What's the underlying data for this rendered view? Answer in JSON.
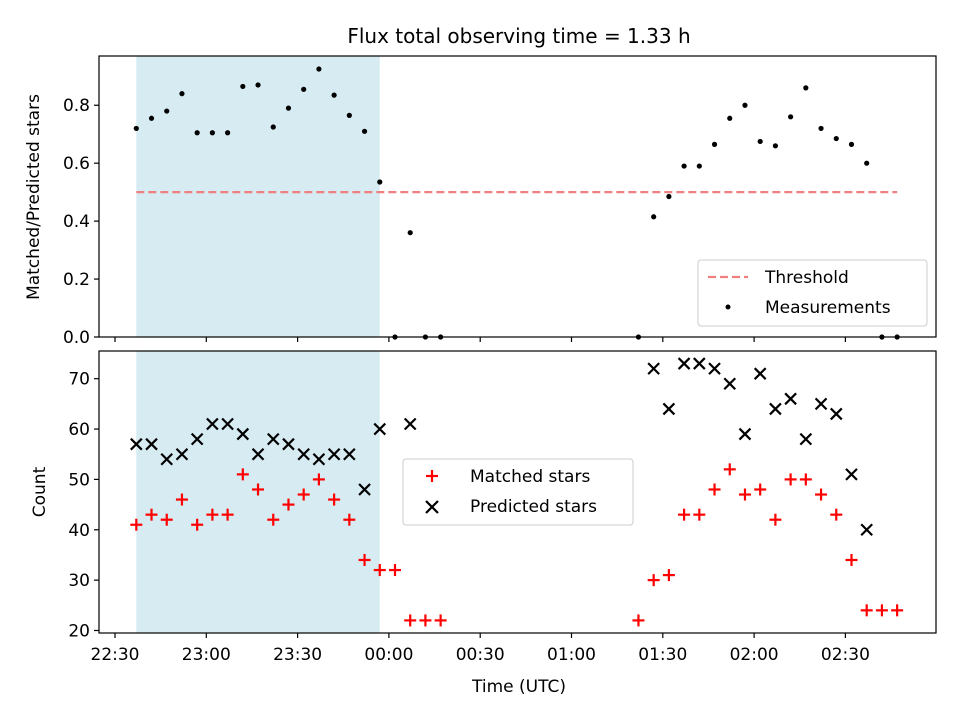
{
  "chart_data": {
    "type": "scatter",
    "title": "Flux total observing time = 1.33 h",
    "xlabel": "Time (UTC)",
    "x_tick_labels": [
      "22:30",
      "23:00",
      "23:30",
      "00:00",
      "00:30",
      "01:00",
      "01:30",
      "02:00",
      "02:30"
    ],
    "shaded_interval": [
      "22:37",
      "23:57"
    ],
    "panels": [
      {
        "ylabel": "Matched/Predicted stars",
        "ylim": [
          0,
          0.97
        ],
        "y_ticks": [
          0.0,
          0.2,
          0.4,
          0.6,
          0.8
        ],
        "y_tick_labels": [
          "0.0",
          "0.2",
          "0.4",
          "0.6",
          "0.8"
        ],
        "legend": {
          "position": "lower-right",
          "entries": [
            "Threshold",
            "Measurements"
          ]
        },
        "threshold": {
          "name": "Threshold",
          "value": 0.5,
          "x_range": [
            "22:37",
            "02:47"
          ],
          "color": "#f08080"
        },
        "series": [
          {
            "name": "Measurements",
            "color": "#000000",
            "marker": "dot",
            "x": [
              "22:37",
              "22:42",
              "22:47",
              "22:52",
              "22:57",
              "23:02",
              "23:07",
              "23:12",
              "23:17",
              "23:22",
              "23:27",
              "23:32",
              "23:37",
              "23:42",
              "23:47",
              "23:52",
              "23:57",
              "00:02",
              "00:07",
              "00:12",
              "00:17",
              "01:22",
              "01:27",
              "01:32",
              "01:37",
              "01:42",
              "01:47",
              "01:52",
              "01:57",
              "02:02",
              "02:07",
              "02:12",
              "02:17",
              "02:22",
              "02:27",
              "02:32",
              "02:37",
              "02:42",
              "02:47"
            ],
            "y": [
              0.72,
              0.755,
              0.78,
              0.84,
              0.705,
              0.705,
              0.705,
              0.865,
              0.87,
              0.725,
              0.79,
              0.855,
              0.925,
              0.835,
              0.765,
              0.71,
              0.535,
              0.0,
              0.36,
              0.0,
              0.0,
              0.0,
              0.415,
              0.485,
              0.59,
              0.59,
              0.665,
              0.755,
              0.8,
              0.675,
              0.66,
              0.76,
              0.86,
              0.72,
              0.685,
              0.665,
              0.6,
              0.0,
              0.0
            ]
          }
        ]
      },
      {
        "ylabel": "Count",
        "ylim": [
          19.5,
          75.5
        ],
        "y_ticks": [
          20,
          30,
          40,
          50,
          60,
          70
        ],
        "y_tick_labels": [
          "20",
          "30",
          "40",
          "50",
          "60",
          "70"
        ],
        "legend": {
          "position": "center",
          "entries": [
            "Matched stars",
            "Predicted stars"
          ]
        },
        "series": [
          {
            "name": "Matched stars",
            "color": "#ff0000",
            "marker": "plus",
            "x": [
              "22:37",
              "22:42",
              "22:47",
              "22:52",
              "22:57",
              "23:02",
              "23:07",
              "23:12",
              "23:17",
              "23:22",
              "23:27",
              "23:32",
              "23:37",
              "23:42",
              "23:47",
              "23:52",
              "23:57",
              "00:02",
              "00:07",
              "00:12",
              "00:17",
              "01:22",
              "01:27",
              "01:32",
              "01:37",
              "01:42",
              "01:47",
              "01:52",
              "01:57",
              "02:02",
              "02:07",
              "02:12",
              "02:17",
              "02:22",
              "02:27",
              "02:32",
              "02:37",
              "02:42",
              "02:47"
            ],
            "y": [
              41,
              43,
              42,
              46,
              41,
              43,
              43,
              51,
              48,
              42,
              45,
              47,
              50,
              46,
              42,
              34,
              32,
              32,
              22,
              22,
              22,
              22,
              30,
              31,
              43,
              43,
              48,
              52,
              47,
              48,
              42,
              50,
              50,
              47,
              43,
              34,
              24,
              24,
              24
            ]
          },
          {
            "name": "Predicted stars",
            "color": "#000000",
            "marker": "x",
            "x": [
              "22:37",
              "22:42",
              "22:47",
              "22:52",
              "22:57",
              "23:02",
              "23:07",
              "23:12",
              "23:17",
              "23:22",
              "23:27",
              "23:32",
              "23:37",
              "23:42",
              "23:47",
              "23:52",
              "23:57",
              "00:07",
              "01:27",
              "01:32",
              "01:37",
              "01:42",
              "01:47",
              "01:52",
              "01:57",
              "02:02",
              "02:07",
              "02:12",
              "02:17",
              "02:22",
              "02:27",
              "02:32",
              "02:37"
            ],
            "y": [
              57,
              57,
              54,
              55,
              58,
              61,
              61,
              59,
              55,
              58,
              57,
              55,
              54,
              55,
              55,
              48,
              60,
              61,
              72,
              64,
              73,
              73,
              72,
              69,
              59,
              71,
              64,
              66,
              58,
              65,
              63,
              51,
              40
            ]
          }
        ]
      }
    ]
  }
}
